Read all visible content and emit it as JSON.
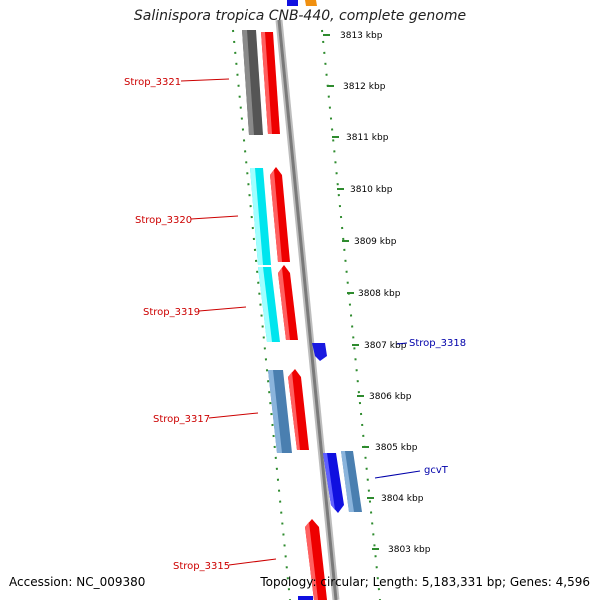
{
  "title": "Salinispora tropica CNB-440, complete genome",
  "footer": {
    "accession": "Accession: NC_009380",
    "stats": "Topology: circular; Length: 5,183,331 bp; Genes: 4,596"
  },
  "colors": {
    "backbone": "#808080",
    "tick": "#2e8b2e",
    "label_left": "#cc0000",
    "label_right": "#0000aa"
  },
  "ruler": {
    "unit": "kbp",
    "labels": [
      "3813 kbp",
      "3812 kbp",
      "3811 kbp",
      "3810 kbp",
      "3809 kbp",
      "3808 kbp",
      "3807 kbp",
      "3806 kbp",
      "3805 kbp",
      "3804 kbp",
      "3803 kbp"
    ]
  },
  "genes_left": [
    {
      "name": "Strop_3321",
      "color": "#cc0000"
    },
    {
      "name": "Strop_3320",
      "color": "#cc0000"
    },
    {
      "name": "Strop_3319",
      "color": "#cc0000"
    },
    {
      "name": "Strop_3317",
      "color": "#cc0000"
    },
    {
      "name": "Strop_3315",
      "color": "#cc0000"
    }
  ],
  "genes_right": [
    {
      "name": "Strop_3318",
      "color": "#0000aa"
    },
    {
      "name": "gcvT",
      "color": "#0000aa"
    }
  ]
}
